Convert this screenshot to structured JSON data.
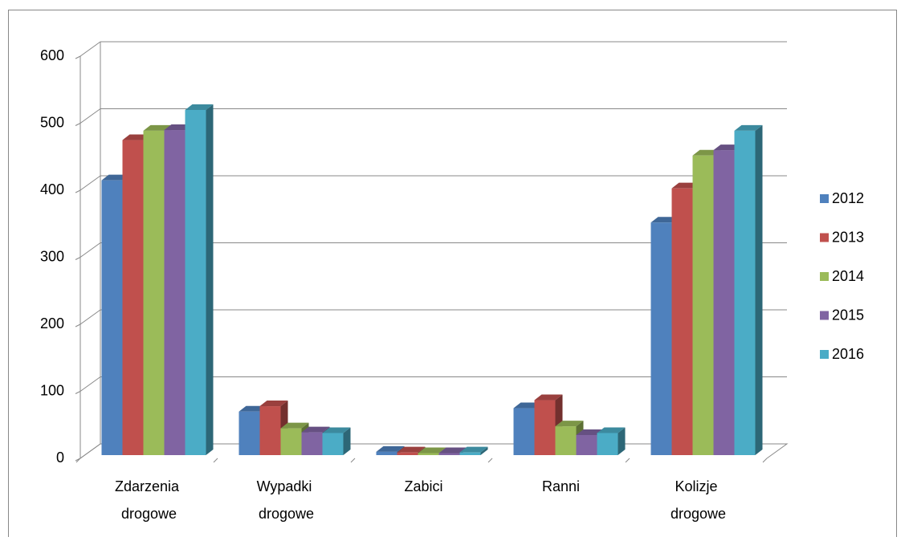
{
  "chart_data": {
    "type": "bar3d",
    "categories": [
      "Zdarzenia drogowe",
      "Wypadki drogowe",
      "Zabici",
      "Ranni",
      "Kolizje drogowe"
    ],
    "series": [
      {
        "name": "2012",
        "color": "#4f81bd",
        "values": [
          410,
          65,
          5,
          70,
          347
        ]
      },
      {
        "name": "2013",
        "color": "#c0504d",
        "values": [
          470,
          73,
          4,
          82,
          398
        ]
      },
      {
        "name": "2014",
        "color": "#9bbb59",
        "values": [
          484,
          40,
          3,
          43,
          447
        ]
      },
      {
        "name": "2015",
        "color": "#8064a2",
        "values": [
          485,
          34,
          3,
          30,
          455
        ]
      },
      {
        "name": "2016",
        "color": "#4bacc6",
        "values": [
          515,
          33,
          4,
          33,
          484
        ]
      }
    ],
    "ylim": [
      0,
      600
    ],
    "yticks": [
      0,
      100,
      200,
      300,
      400,
      500,
      600
    ],
    "grid": true,
    "legend": "right"
  }
}
